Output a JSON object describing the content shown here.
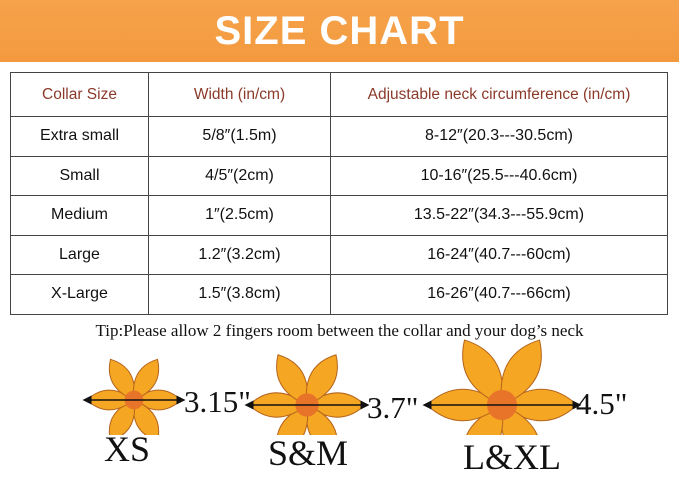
{
  "banner": {
    "title": "SIZE CHART"
  },
  "table": {
    "headers": [
      "Collar Size",
      "Width (in/cm)",
      "Adjustable neck circumference (in/cm)"
    ],
    "rows": [
      [
        "Extra small",
        "5/8″(1.5m)",
        "8-12″(20.3---30.5cm)"
      ],
      [
        "Small",
        "4/5″(2cm)",
        "10-16″(25.5---40.6cm)"
      ],
      [
        "Medium",
        "1″(2.5cm)",
        "13.5-22″(34.3---55.9cm)"
      ],
      [
        "Large",
        "1.2″(3.2cm)",
        "16-24″(40.7---60cm)"
      ],
      [
        "X-Large",
        "1.5″(3.8cm)",
        "16-26″(40.7---66cm)"
      ]
    ]
  },
  "tip": "Tip:Please allow 2 fingers room between the collar and your dog’s neck",
  "flowers": [
    {
      "size_label": "XS",
      "diameter": "3.15\""
    },
    {
      "size_label": "S&M",
      "diameter": "3.7\""
    },
    {
      "size_label": "L&XL",
      "diameter": "4.5\""
    }
  ],
  "colors": {
    "banner": "#f39a3e",
    "header_text": "#8b3a2a",
    "flower": "#f5a623"
  }
}
